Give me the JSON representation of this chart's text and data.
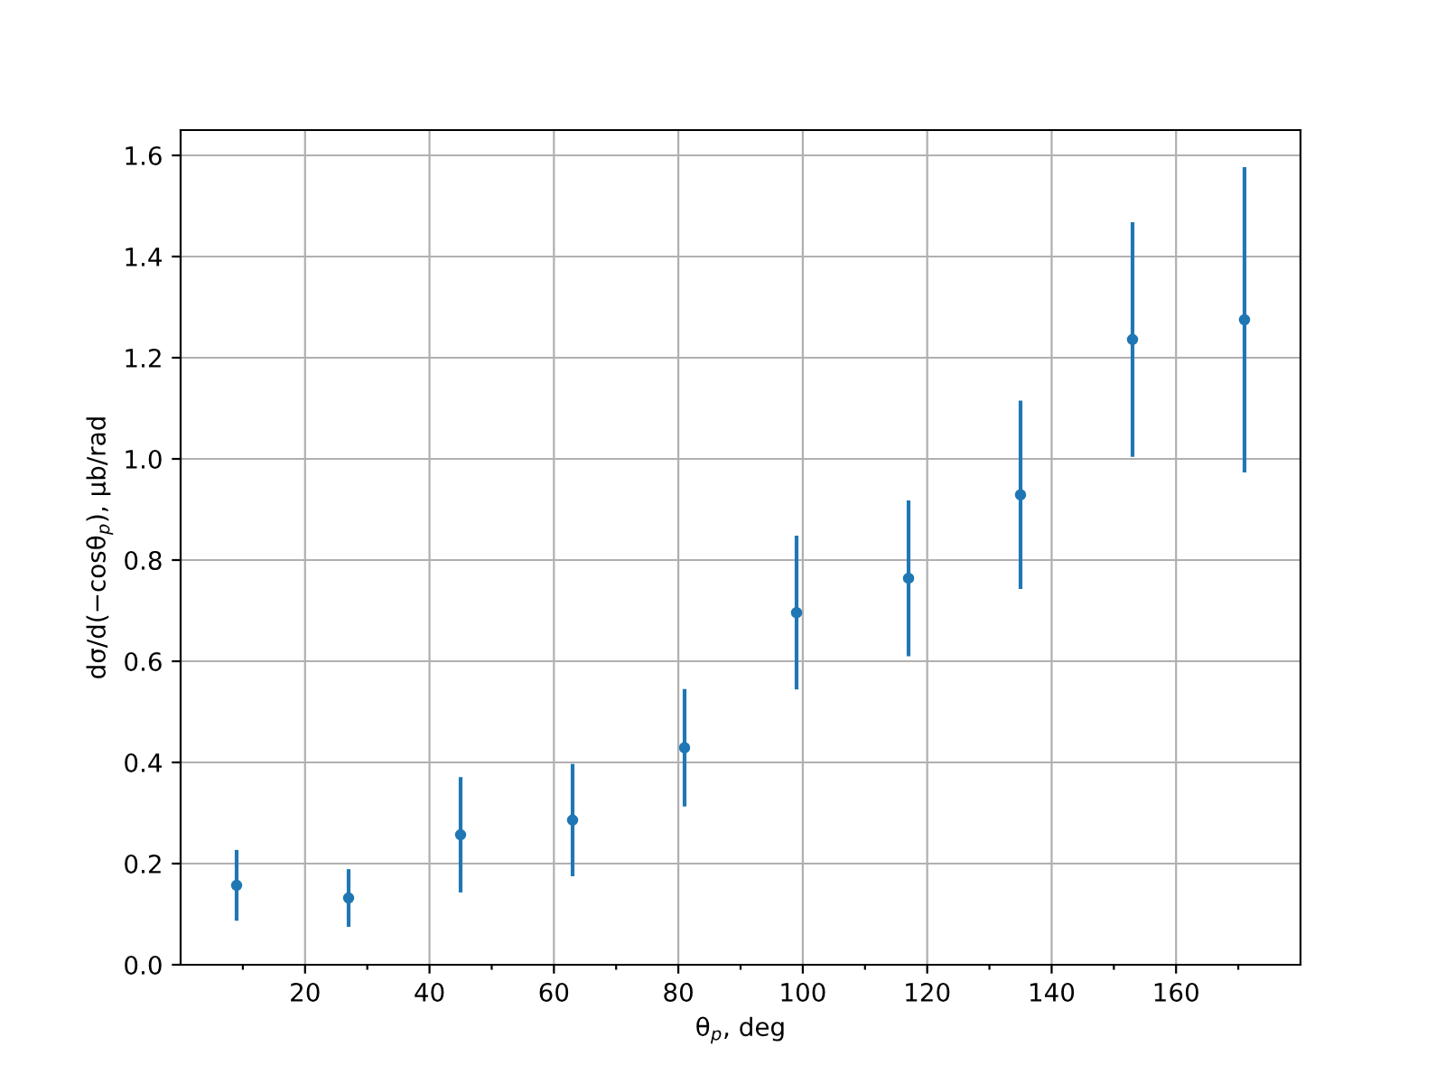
{
  "chart_data": {
    "type": "scatter",
    "xlabel": "θ$_{p}$, deg",
    "ylabel": "dσ/d(−cosθ$_{p}$), μb/rad",
    "x": [
      9,
      27,
      45,
      63,
      81,
      99,
      117,
      135,
      153,
      171
    ],
    "values": [
      0.157,
      0.132,
      0.257,
      0.286,
      0.429,
      0.696,
      0.764,
      0.929,
      1.236,
      1.275
    ],
    "errors": [
      0.07,
      0.057,
      0.114,
      0.111,
      0.116,
      0.152,
      0.154,
      0.186,
      0.232,
      0.302
    ],
    "color": "#1f77b4",
    "marker": "circle",
    "grid": true,
    "xlim": [
      0,
      180
    ],
    "ylim": [
      0,
      1.65
    ],
    "xticks": [
      {
        "value": 10,
        "label": null
      },
      20,
      {
        "value": 30,
        "label": null
      },
      40,
      {
        "value": 50,
        "label": null
      },
      60,
      {
        "value": 70,
        "label": null
      },
      80,
      {
        "value": 90,
        "label": null
      },
      100,
      {
        "value": 110,
        "label": null
      },
      120,
      {
        "value": 130,
        "label": null
      },
      140,
      {
        "value": 150,
        "label": null
      },
      160,
      {
        "value": 170,
        "label": null
      }
    ],
    "yticks": [
      {
        "value": 0,
        "label": "0.0"
      },
      {
        "value": 0.2,
        "label": "0.2"
      },
      {
        "value": 0.4,
        "label": "0.4"
      },
      {
        "value": 0.6,
        "label": "0.6"
      },
      {
        "value": 0.8,
        "label": "0.8"
      },
      {
        "value": 1.0,
        "label": "1.0"
      },
      {
        "value": 1.2,
        "label": "1.2"
      },
      {
        "value": 1.4,
        "label": "1.4"
      },
      {
        "value": 1.6,
        "label": "1.6"
      }
    ]
  }
}
